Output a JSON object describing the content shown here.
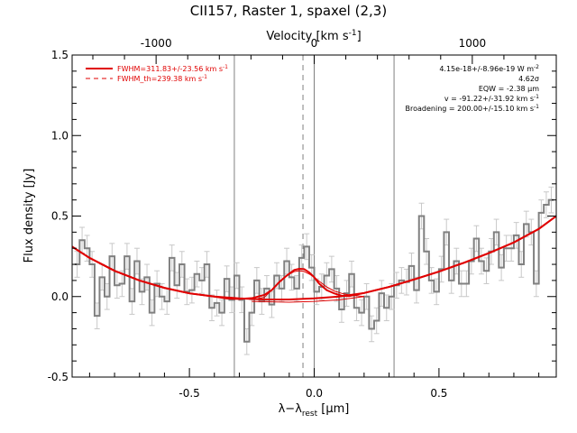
{
  "chart_data": {
    "type": "line",
    "title": "CII157, Raster 1, spaxel (2,3)",
    "xlabel": "λ−λ_rest [μm]",
    "xlabel_main": "λ−λ",
    "xlabel_sub": "rest",
    "xlabel_unit": " [μm]",
    "ylabel": "Flux density [Jy]",
    "top_xlabel": "Velocity [km s^-1]",
    "top_xlabel_main": "Velocity [km s",
    "top_xlabel_sup": "-1",
    "top_xlabel_end": "]",
    "xlim": [
      -0.97,
      0.97
    ],
    "ylim": [
      -0.5,
      1.5
    ],
    "x_ticks": [
      -0.5,
      0.0,
      0.5
    ],
    "x_tick_labels": [
      "-0.5",
      "0.0",
      "0.5"
    ],
    "y_ticks": [
      -0.5,
      0.0,
      0.5,
      1.0,
      1.5
    ],
    "y_tick_labels": [
      "-0.5",
      "0.0",
      "0.5",
      "1.0",
      "1.5"
    ],
    "top_ticks_um": [
      -0.6335,
      0.0,
      0.6335
    ],
    "top_tick_labels": [
      "-1000",
      "0",
      "1000"
    ],
    "vertical_lines": [
      -0.32,
      0.0,
      0.32
    ],
    "dashed_line": -0.045,
    "legend_position": "top-left",
    "legend": [
      {
        "label": "FWHM=311.83+/-23.56 km s^-1",
        "main": "FWHM=311.83+/-23.56 km s",
        "sup": "-1",
        "style": "solid"
      },
      {
        "label": "FWHM_th=239.38 km s^-1",
        "main": "FWHM_th=239.38 km s",
        "sup": "-1",
        "style": "dashed"
      }
    ],
    "annotations": [
      {
        "main": "4.15e-18+/-8.96e-19 W m",
        "sup": "-2"
      },
      {
        "main": "4.62σ",
        "sup": ""
      },
      {
        "main": "EQW = -2.38 μm",
        "sup": ""
      },
      {
        "main": "v = -91.22+/-31.92 km s",
        "sup": "-1"
      },
      {
        "main": "Broadening = 200.00+/-15.10 km s",
        "sup": "-1"
      }
    ],
    "colors": {
      "data": "#808080",
      "error": "#c8c8c8",
      "fit": "#e00000",
      "vlines": "#808080"
    },
    "series": [
      {
        "name": "data",
        "x": [
          -0.95,
          -0.93,
          -0.91,
          -0.89,
          -0.87,
          -0.85,
          -0.83,
          -0.81,
          -0.79,
          -0.77,
          -0.75,
          -0.73,
          -0.71,
          -0.69,
          -0.67,
          -0.65,
          -0.63,
          -0.61,
          -0.59,
          -0.57,
          -0.55,
          -0.53,
          -0.51,
          -0.49,
          -0.47,
          -0.45,
          -0.43,
          -0.41,
          -0.39,
          -0.37,
          -0.35,
          -0.33,
          -0.31,
          -0.29,
          -0.27,
          -0.25,
          -0.23,
          -0.21,
          -0.19,
          -0.17,
          -0.15,
          -0.13,
          -0.11,
          -0.09,
          -0.07,
          -0.05,
          -0.03,
          -0.01,
          0.01,
          0.03,
          0.05,
          0.07,
          0.09,
          0.11,
          0.13,
          0.15,
          0.17,
          0.19,
          0.21,
          0.23,
          0.25,
          0.27,
          0.29,
          0.31,
          0.33,
          0.35,
          0.37,
          0.39,
          0.41,
          0.43,
          0.45,
          0.47,
          0.49,
          0.51,
          0.53,
          0.55,
          0.57,
          0.59,
          0.61,
          0.63,
          0.65,
          0.67,
          0.69,
          0.71,
          0.73,
          0.75,
          0.77,
          0.79,
          0.81,
          0.83,
          0.85,
          0.87,
          0.89,
          0.91,
          0.93,
          0.95
        ],
        "y": [
          0.2,
          0.35,
          0.3,
          0.2,
          -0.12,
          0.12,
          0.0,
          0.25,
          0.07,
          0.08,
          0.25,
          -0.03,
          0.22,
          0.03,
          0.12,
          -0.1,
          0.08,
          0.0,
          -0.03,
          0.24,
          0.07,
          0.2,
          0.03,
          0.04,
          0.14,
          0.1,
          0.2,
          -0.07,
          -0.04,
          -0.1,
          0.11,
          -0.02,
          0.13,
          -0.02,
          -0.28,
          -0.1,
          0.1,
          -0.03,
          0.05,
          -0.05,
          0.13,
          0.05,
          0.22,
          0.12,
          0.05,
          0.24,
          0.31,
          0.18,
          0.03,
          0.06,
          0.13,
          0.17,
          0.05,
          -0.08,
          0.02,
          0.14,
          -0.07,
          -0.1,
          0.0,
          -0.2,
          -0.15,
          0.02,
          -0.07,
          0.0,
          0.07,
          0.1,
          0.09,
          0.19,
          0.04,
          0.5,
          0.28,
          0.1,
          0.03,
          0.17,
          0.4,
          0.1,
          0.22,
          0.08,
          0.08,
          0.22,
          0.36,
          0.22,
          0.16,
          0.28,
          0.4,
          0.18,
          0.3,
          0.3,
          0.38,
          0.2,
          0.45,
          0.4,
          0.08,
          0.52,
          0.57,
          0.6
        ],
        "err": [
          0.08,
          0.08,
          0.08,
          0.08,
          0.08,
          0.08,
          0.08,
          0.08,
          0.08,
          0.08,
          0.08,
          0.08,
          0.08,
          0.08,
          0.08,
          0.08,
          0.08,
          0.08,
          0.08,
          0.08,
          0.08,
          0.08,
          0.08,
          0.08,
          0.08,
          0.08,
          0.08,
          0.08,
          0.08,
          0.08,
          0.08,
          0.08,
          0.08,
          0.08,
          0.08,
          0.08,
          0.08,
          0.08,
          0.08,
          0.08,
          0.08,
          0.08,
          0.08,
          0.08,
          0.08,
          0.08,
          0.08,
          0.08,
          0.08,
          0.08,
          0.08,
          0.08,
          0.08,
          0.08,
          0.08,
          0.08,
          0.08,
          0.08,
          0.08,
          0.08,
          0.08,
          0.08,
          0.08,
          0.08,
          0.08,
          0.08,
          0.08,
          0.08,
          0.08,
          0.08,
          0.08,
          0.08,
          0.08,
          0.08,
          0.08,
          0.08,
          0.08,
          0.08,
          0.08,
          0.08,
          0.08,
          0.08,
          0.08,
          0.08,
          0.08,
          0.08,
          0.08,
          0.08,
          0.08,
          0.08,
          0.08,
          0.08,
          0.08,
          0.08,
          0.08,
          0.08
        ]
      },
      {
        "name": "baseline",
        "x": [
          -0.97,
          -0.9,
          -0.8,
          -0.7,
          -0.6,
          -0.5,
          -0.4,
          -0.3,
          -0.2,
          -0.1,
          0.0,
          0.1,
          0.2,
          0.3,
          0.4,
          0.5,
          0.6,
          0.7,
          0.8,
          0.9,
          0.97
        ],
        "y": [
          0.31,
          0.24,
          0.16,
          0.1,
          0.054,
          0.02,
          0.0,
          -0.011,
          -0.018,
          -0.018,
          -0.011,
          0.0,
          0.022,
          0.06,
          0.106,
          0.155,
          0.21,
          0.27,
          0.336,
          0.42,
          0.5
        ]
      },
      {
        "name": "fit",
        "x": [
          -0.97,
          -0.9,
          -0.8,
          -0.7,
          -0.6,
          -0.5,
          -0.4,
          -0.35,
          -0.3,
          -0.25,
          -0.2,
          -0.17,
          -0.14,
          -0.11,
          -0.08,
          -0.06,
          -0.04,
          -0.02,
          0.0,
          0.02,
          0.05,
          0.08,
          0.11,
          0.14,
          0.2,
          0.3,
          0.4,
          0.5,
          0.6,
          0.7,
          0.8,
          0.9,
          0.97
        ],
        "y": [
          0.31,
          0.24,
          0.16,
          0.1,
          0.054,
          0.02,
          0.0,
          -0.012,
          -0.015,
          -0.01,
          0.01,
          0.04,
          0.09,
          0.13,
          0.165,
          0.172,
          0.17,
          0.15,
          0.12,
          0.08,
          0.04,
          0.02,
          0.005,
          0.003,
          0.022,
          0.06,
          0.106,
          0.155,
          0.21,
          0.27,
          0.336,
          0.42,
          0.5
        ]
      },
      {
        "name": "gaussian",
        "x": [
          -0.25,
          -0.2,
          -0.17,
          -0.14,
          -0.11,
          -0.08,
          -0.06,
          -0.04,
          -0.02,
          0.0,
          0.02,
          0.05,
          0.08,
          0.11,
          0.14,
          0.2
        ],
        "y": [
          -0.02,
          -0.005,
          0.04,
          0.09,
          0.13,
          0.155,
          0.16,
          0.155,
          0.14,
          0.12,
          0.095,
          0.06,
          0.035,
          0.02,
          0.01,
          0.0
        ]
      },
      {
        "name": "floor",
        "x": [
          -0.25,
          -0.1,
          0.0,
          0.1,
          0.2
        ],
        "y": [
          -0.03,
          -0.035,
          -0.03,
          -0.02,
          0.0
        ]
      }
    ]
  }
}
